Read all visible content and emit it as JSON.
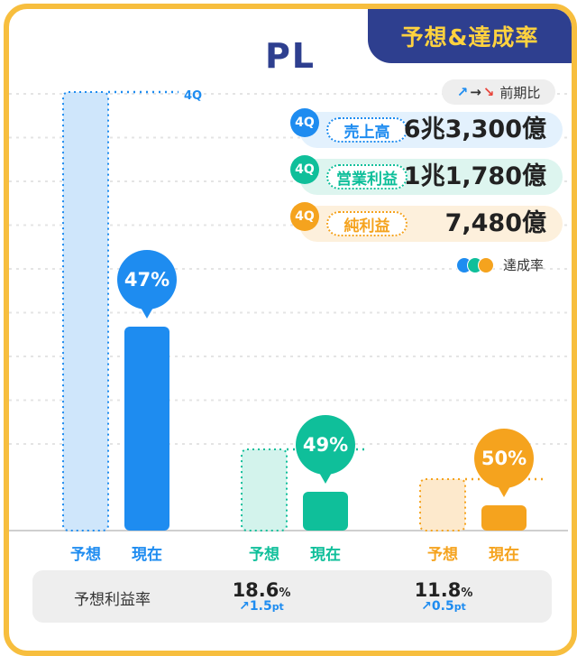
{
  "header": {
    "badge": "予想&達成率",
    "title": "PL"
  },
  "comparison_legend": {
    "up": "↗",
    "flat": "→",
    "down": "↘",
    "label": "前期比"
  },
  "kpis": [
    {
      "quarter": "4Q",
      "label": "売上高",
      "value": "6兆3,300億",
      "color": "#1e8cf0",
      "bg": "#e3f1fd"
    },
    {
      "quarter": "4Q",
      "label": "営業利益",
      "value": "1兆1,780億",
      "color": "#0fbf9a",
      "bg": "#ddf5ef"
    },
    {
      "quarter": "4Q",
      "label": "純利益",
      "value": "7,480億",
      "color": "#f5a31e",
      "bg": "#fdf0dc"
    }
  ],
  "achievement_legend": "達成率",
  "chart_data": {
    "type": "bar",
    "forecast_marker_label": "4Q",
    "groups": [
      {
        "name": "売上高",
        "forecast_label": "予想",
        "current_label": "現在",
        "forecast": 100,
        "current": 47,
        "rate_label": "47%",
        "color": "#1e8cf0",
        "forecast_fill": "#cfe6fb"
      },
      {
        "name": "営業利益",
        "forecast_label": "予想",
        "current_label": "現在",
        "forecast": 100,
        "current": 49,
        "rate_label": "49%",
        "color": "#0fbf9a",
        "forecast_fill": "#d3f3ec"
      },
      {
        "name": "純利益",
        "forecast_label": "予想",
        "current_label": "現在",
        "forecast": 100,
        "current": 50,
        "rate_label": "50%",
        "color": "#f5a31e",
        "forecast_fill": "#fde9cc"
      }
    ]
  },
  "profit_rate": {
    "label": "予想利益率",
    "items": [
      {
        "value": "18.6",
        "unit": "%",
        "change": "↗1.5",
        "change_unit": "pt"
      },
      {
        "value": "11.8",
        "unit": "%",
        "change": "↗0.5",
        "change_unit": "pt"
      }
    ]
  }
}
